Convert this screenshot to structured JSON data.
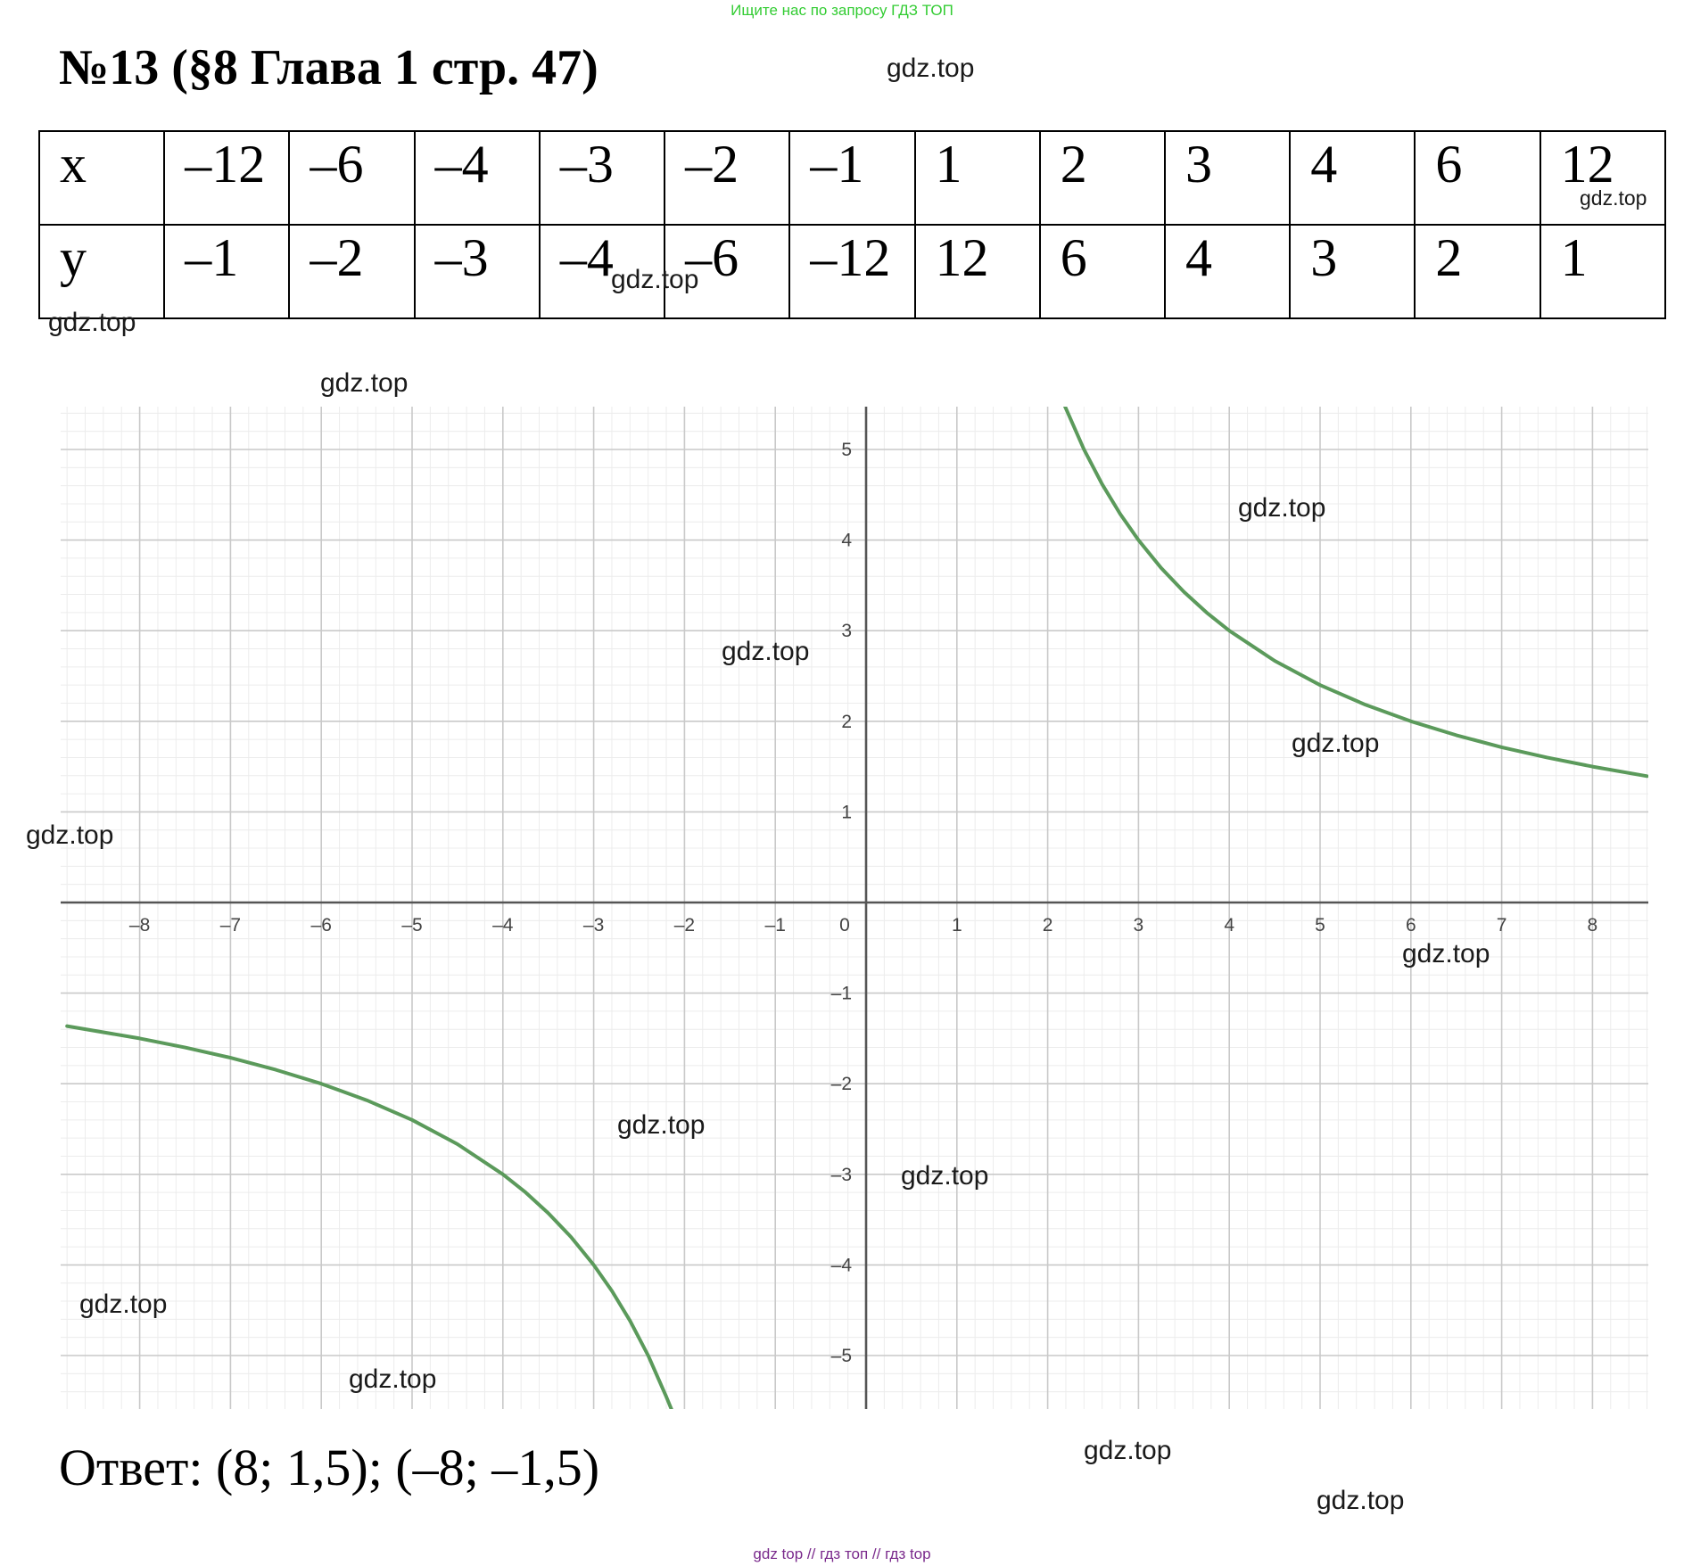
{
  "top_banner": "Ищите нас по запросу ГДЗ ТОП",
  "title": "№13 (§8 Глава 1  стр. 47)",
  "table": {
    "x_label": "x",
    "y_label": "y",
    "x_values": [
      "–12",
      "–6",
      "–4",
      "–3",
      "–2",
      "–1",
      "1",
      "2",
      "3",
      "4",
      "6",
      "12"
    ],
    "y_values": [
      "–1",
      "–2",
      "–3",
      "–4",
      "–6",
      "–12",
      "12",
      "6",
      "4",
      "3",
      "2",
      "1"
    ]
  },
  "watermark": "gdz.top",
  "chart_data": {
    "type": "line",
    "function": "y = 12/x",
    "xlim": [
      -8.8,
      8.7
    ],
    "ylim": [
      -5.6,
      5.5
    ],
    "grid": true,
    "line_color": "#5b9a5b",
    "x_ticks": [
      "–8",
      "–7",
      "–6",
      "–5",
      "–4",
      "–3",
      "–2",
      "–1",
      "0",
      "1",
      "2",
      "3",
      "4",
      "5",
      "6",
      "7",
      "8"
    ],
    "y_ticks": [
      "5",
      "4",
      "3",
      "2",
      "1",
      "–1",
      "–2",
      "–3",
      "–4",
      "–5"
    ],
    "series": [
      {
        "x": [
          2.18,
          2.4,
          2.6,
          2.8,
          3,
          3.25,
          3.5,
          3.75,
          4,
          4.5,
          5,
          5.5,
          6,
          6.5,
          7,
          7.5,
          8,
          8.6
        ],
        "y": [
          5.5,
          5,
          4.615,
          4.286,
          4,
          3.692,
          3.429,
          3.2,
          3,
          2.667,
          2.4,
          2.182,
          2,
          1.846,
          1.714,
          1.6,
          1.5,
          1.395
        ]
      },
      {
        "x": [
          -8.8,
          -8,
          -7.5,
          -7,
          -6.5,
          -6,
          -5.5,
          -5,
          -4.5,
          -4,
          -3.75,
          -3.5,
          -3.25,
          -3,
          -2.8,
          -2.6,
          -2.4,
          -2.2,
          -2.14
        ],
        "y": [
          -1.364,
          -1.5,
          -1.6,
          -1.714,
          -1.846,
          -2,
          -2.182,
          -2.4,
          -2.667,
          -3,
          -3.2,
          -3.429,
          -3.692,
          -4,
          -4.286,
          -4.615,
          -5,
          -5.455,
          -5.6
        ]
      }
    ]
  },
  "answer": "Ответ: (8; 1,5); (–8; –1,5)",
  "bottom_banner": "gdz top  //  гдз топ  //  гдз top"
}
